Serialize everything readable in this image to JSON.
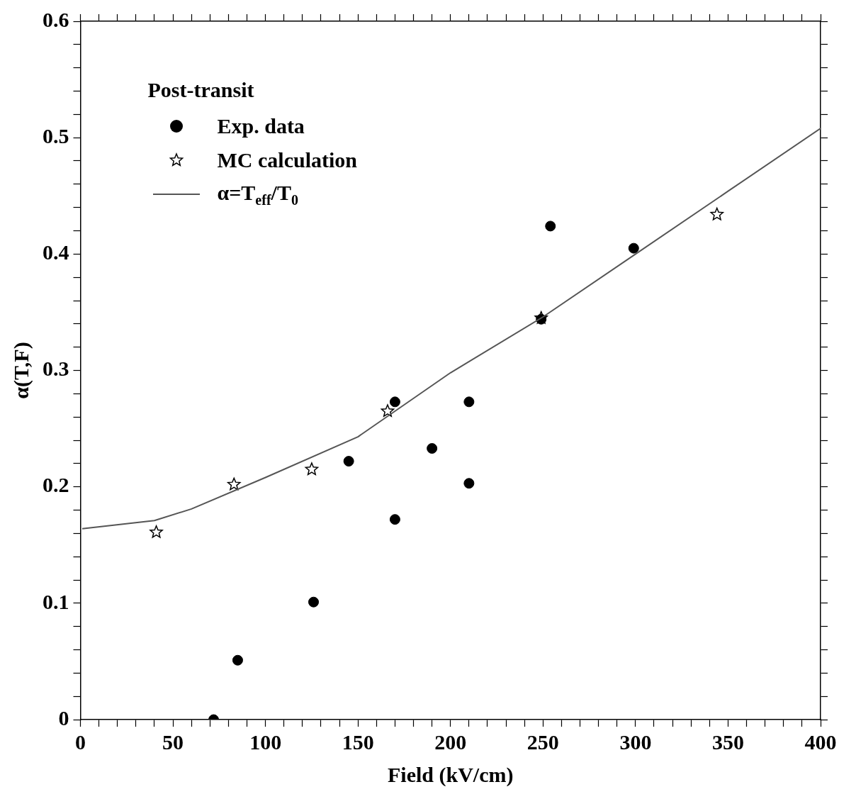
{
  "chart_data": {
    "type": "scatter",
    "xlabel": "Field (kV/cm)",
    "ylabel": "α(T,F)",
    "legend_title": "Post-transit",
    "legend": "top left",
    "grid": false,
    "xlim": [
      0,
      400
    ],
    "ylim": [
      0,
      0.6
    ],
    "xticks": [
      0,
      {
        "value": 10,
        "label": null
      },
      {
        "value": 20,
        "label": null
      },
      {
        "value": 30,
        "label": null
      },
      {
        "value": 40,
        "label": null
      },
      50,
      {
        "value": 60,
        "label": null
      },
      {
        "value": 70,
        "label": null
      },
      {
        "value": 80,
        "label": null
      },
      {
        "value": 90,
        "label": null
      },
      100,
      {
        "value": 110,
        "label": null
      },
      {
        "value": 120,
        "label": null
      },
      {
        "value": 130,
        "label": null
      },
      {
        "value": 140,
        "label": null
      },
      150,
      {
        "value": 160,
        "label": null
      },
      {
        "value": 170,
        "label": null
      },
      {
        "value": 180,
        "label": null
      },
      {
        "value": 190,
        "label": null
      },
      200,
      {
        "value": 210,
        "label": null
      },
      {
        "value": 220,
        "label": null
      },
      {
        "value": 230,
        "label": null
      },
      {
        "value": 240,
        "label": null
      },
      250,
      {
        "value": 260,
        "label": null
      },
      {
        "value": 270,
        "label": null
      },
      {
        "value": 280,
        "label": null
      },
      {
        "value": 290,
        "label": null
      },
      300,
      {
        "value": 310,
        "label": null
      },
      {
        "value": 320,
        "label": null
      },
      {
        "value": 330,
        "label": null
      },
      {
        "value": 340,
        "label": null
      },
      350,
      {
        "value": 360,
        "label": null
      },
      {
        "value": 370,
        "label": null
      },
      {
        "value": 380,
        "label": null
      },
      {
        "value": 390,
        "label": null
      },
      400
    ],
    "yticks": [
      0,
      {
        "value": 0.02,
        "label": null
      },
      {
        "value": 0.04,
        "label": null
      },
      {
        "value": 0.06,
        "label": null
      },
      {
        "value": 0.08,
        "label": null
      },
      0.1,
      {
        "value": 0.12,
        "label": null
      },
      {
        "value": 0.14,
        "label": null
      },
      {
        "value": 0.16,
        "label": null
      },
      {
        "value": 0.18,
        "label": null
      },
      0.2,
      {
        "value": 0.22,
        "label": null
      },
      {
        "value": 0.24,
        "label": null
      },
      {
        "value": 0.26,
        "label": null
      },
      {
        "value": 0.28,
        "label": null
      },
      0.3,
      {
        "value": 0.32,
        "label": null
      },
      {
        "value": 0.34,
        "label": null
      },
      {
        "value": 0.36,
        "label": null
      },
      {
        "value": 0.38,
        "label": null
      },
      0.4,
      {
        "value": 0.42,
        "label": null
      },
      {
        "value": 0.44,
        "label": null
      },
      {
        "value": 0.46,
        "label": null
      },
      {
        "value": 0.48,
        "label": null
      },
      0.5,
      {
        "value": 0.52,
        "label": null
      },
      {
        "value": 0.54,
        "label": null
      },
      {
        "value": 0.56,
        "label": null
      },
      {
        "value": 0.58,
        "label": null
      },
      0.6
    ],
    "series": [
      {
        "name": "Exp. data",
        "type": "scatter",
        "marker": "circle",
        "color": "#000000",
        "x": [
          72,
          85,
          126,
          145,
          170,
          170,
          190,
          210,
          210,
          249,
          254,
          299
        ],
        "values": [
          0.0,
          0.051,
          0.101,
          0.222,
          0.273,
          0.172,
          0.233,
          0.273,
          0.203,
          0.344,
          0.424,
          0.405
        ]
      },
      {
        "name": "MC calculation",
        "type": "scatter",
        "marker": "star",
        "color": "#000000",
        "x": [
          41,
          83,
          125,
          166,
          249,
          344
        ],
        "values": [
          0.161,
          0.202,
          0.215,
          0.265,
          0.345,
          0.434
        ]
      },
      {
        "name": "α=T$_{eff}$/T$_{0}$",
        "type": "line",
        "marker": "none",
        "line_style": "solid",
        "color": "#555555",
        "x": [
          1,
          40,
          60,
          100,
          150,
          200,
          250,
          300,
          350,
          400
        ],
        "values": [
          0.164,
          0.171,
          0.181,
          0.208,
          0.243,
          0.298,
          0.346,
          0.4,
          0.454,
          0.508
        ]
      }
    ]
  }
}
